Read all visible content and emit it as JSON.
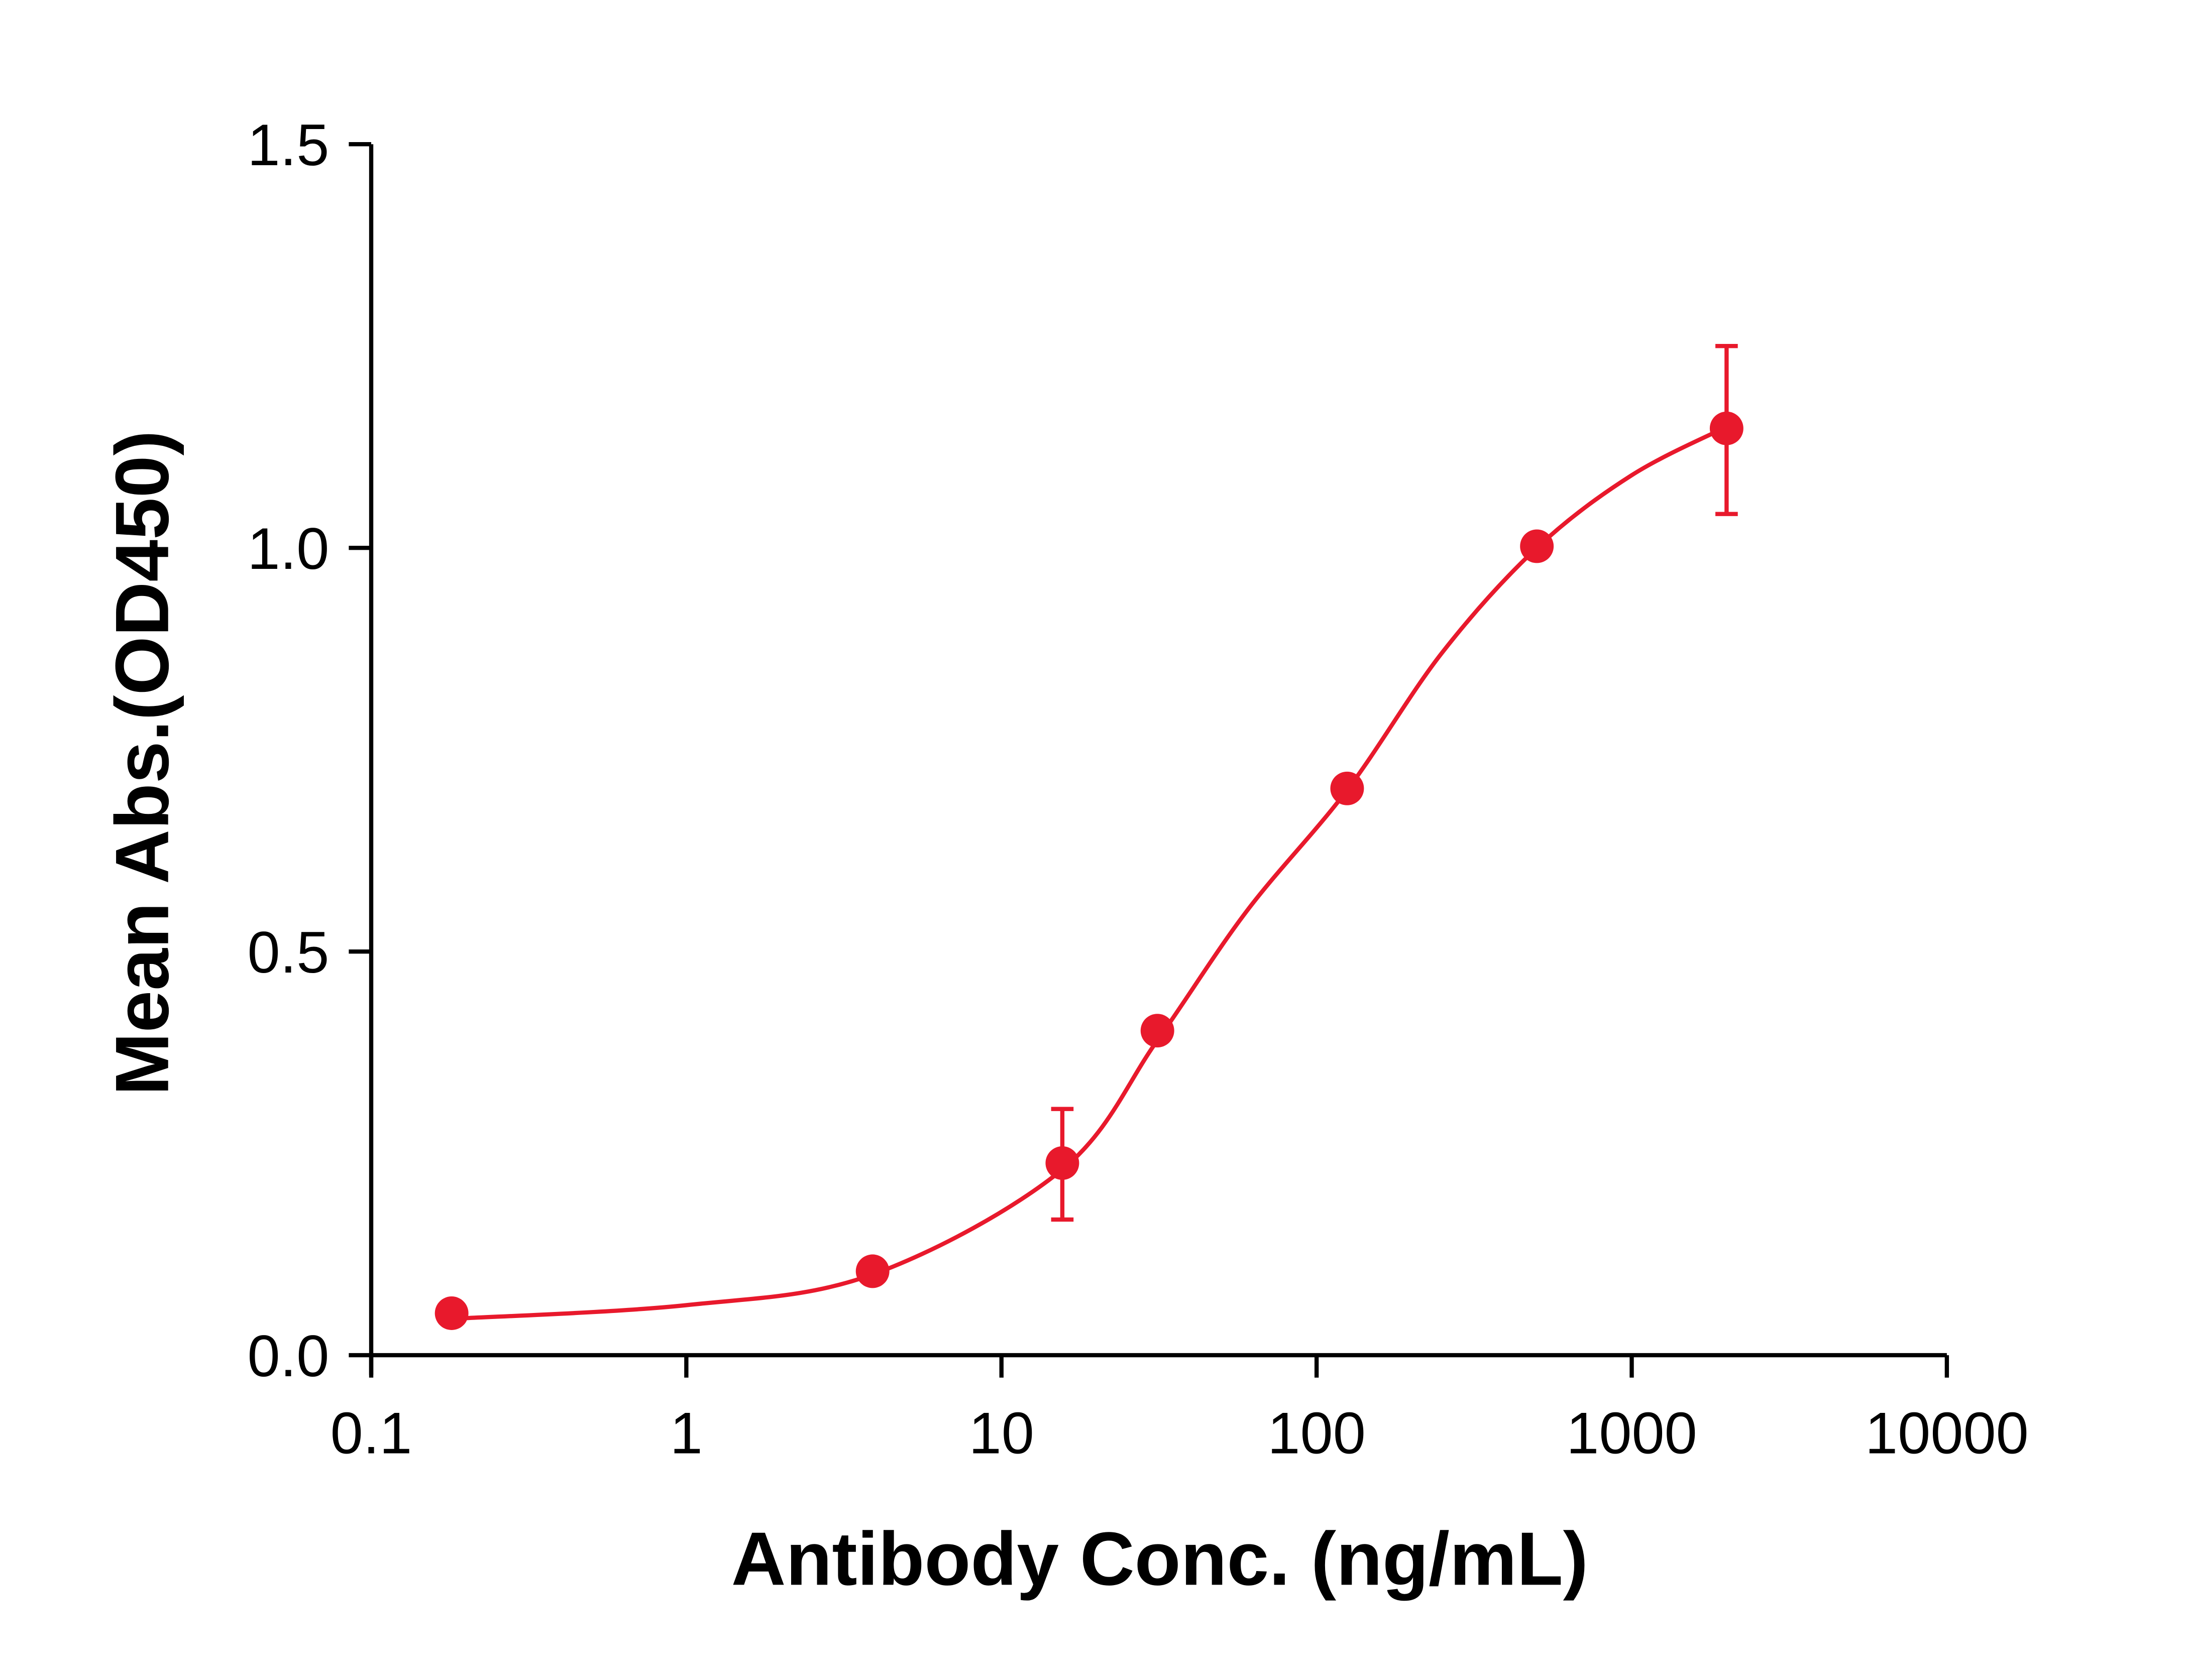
{
  "chart_data": {
    "type": "scatter",
    "title": "",
    "xlabel": "Antibody Conc. (ng/mL)",
    "ylabel": "Mean Abs.(OD450)",
    "x_scale": "log",
    "xlim": [
      0.1,
      10000
    ],
    "ylim": [
      0,
      1.5
    ],
    "x_ticks": [
      "0.1",
      "1",
      "10",
      "100",
      "1000",
      "10000"
    ],
    "y_ticks": [
      "0.0",
      "0.5",
      "1.0",
      "1.5"
    ],
    "grid": false,
    "color": "#e8192c",
    "points": [
      {
        "x": 0.18,
        "y": 0.052
      },
      {
        "x": 3.9,
        "y": 0.104
      },
      {
        "x": 15.6,
        "y": 0.238,
        "err_low": 0.168,
        "err_high": 0.305
      },
      {
        "x": 31.25,
        "y": 0.402
      },
      {
        "x": 125,
        "y": 0.702
      },
      {
        "x": 500,
        "y": 1.002
      },
      {
        "x": 2000,
        "y": 1.148,
        "err_low": 1.042,
        "err_high": 1.25
      }
    ],
    "fit_curve": [
      {
        "x": 0.18,
        "y": 0.045
      },
      {
        "x": 1,
        "y": 0.062
      },
      {
        "x": 3.9,
        "y": 0.1
      },
      {
        "x": 15.6,
        "y": 0.23
      },
      {
        "x": 31.25,
        "y": 0.39
      },
      {
        "x": 60,
        "y": 0.55
      },
      {
        "x": 125,
        "y": 0.7
      },
      {
        "x": 250,
        "y": 0.87
      },
      {
        "x": 500,
        "y": 1.0
      },
      {
        "x": 1000,
        "y": 1.09
      },
      {
        "x": 2000,
        "y": 1.15
      }
    ]
  }
}
